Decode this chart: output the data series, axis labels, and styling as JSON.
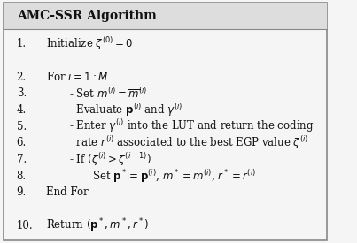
{
  "title": "AMC-SSR Algorithm",
  "lines": [
    {
      "num": "1.",
      "indent": 0,
      "text": "Initialize $\\zeta^{(0)} = 0$"
    },
    {
      "num": "",
      "indent": 0,
      "text": ""
    },
    {
      "num": "2.",
      "indent": 0,
      "text": "For $i = 1 : M$"
    },
    {
      "num": "3.",
      "indent": 1,
      "text": "- Set $m^{(i)} = \\overline{m}^{(i)}$"
    },
    {
      "num": "4.",
      "indent": 1,
      "text": "- Evaluate $\\mathbf{p}^{(i)}$ and $\\gamma^{(i)}$"
    },
    {
      "num": "5.",
      "indent": 1,
      "text": "- Enter $\\gamma^{(i)}$ into the LUT and return the coding"
    },
    {
      "num": "6.",
      "indent": 1,
      "text": "  rate $r^{(i)}$ associated to the best EGP value $\\zeta^{(i)}$"
    },
    {
      "num": "7.",
      "indent": 1,
      "text": "- If $(\\zeta^{(i)} > \\zeta^{(i-1)})$"
    },
    {
      "num": "8.",
      "indent": 2,
      "text": "Set $\\mathbf{p}^* = \\mathbf{p}^{(i)}$, $m^* = m^{(i)}$, $r^* = r^{(i)}$"
    },
    {
      "num": "9.",
      "indent": 0,
      "text": "End For"
    },
    {
      "num": "",
      "indent": 0,
      "text": ""
    },
    {
      "num": "10.",
      "indent": 0,
      "text": "Return $(\\mathbf{p}^*, m^*, r^*)$"
    }
  ],
  "bg_color": "#f5f5f5",
  "border_color": "#888888",
  "title_bg": "#dddddd",
  "text_color": "#111111",
  "font_size": 8.5,
  "title_font_size": 10
}
